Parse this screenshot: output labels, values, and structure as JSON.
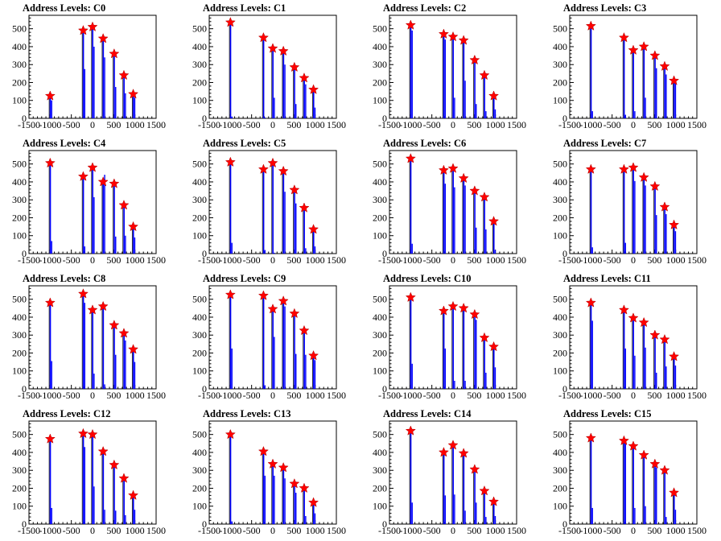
{
  "chart_data": [
    {
      "type": "bar",
      "title": "Address Levels: C0",
      "xlim": [
        -1500,
        1500
      ],
      "ylim": [
        0,
        500
      ],
      "yticks": [
        0,
        100,
        200,
        300,
        400,
        500
      ],
      "xticks": [
        -1500,
        -1000,
        -500,
        0,
        500,
        1000,
        1500
      ],
      "peaks": [
        {
          "x": -1000,
          "y": 125,
          "shoulder": 100
        },
        {
          "x": -220,
          "y": 490,
          "shoulder": 275
        },
        {
          "x": 0,
          "y": 510,
          "shoulder": 400
        },
        {
          "x": 250,
          "y": 445,
          "shoulder": 340
        },
        {
          "x": 510,
          "y": 360,
          "shoulder": 175
        },
        {
          "x": 740,
          "y": 240,
          "shoulder": 140
        },
        {
          "x": 960,
          "y": 135,
          "shoulder": 115
        }
      ]
    },
    {
      "type": "bar",
      "title": "Address Levels: C1",
      "xlim": [
        -1500,
        1500
      ],
      "ylim": [
        0,
        500
      ],
      "yticks": [
        0,
        100,
        200,
        300,
        400,
        500
      ],
      "xticks": [
        -1500,
        -1000,
        -500,
        0,
        500,
        1000,
        1500
      ],
      "peaks": [
        {
          "x": -1000,
          "y": 535,
          "shoulder": 10
        },
        {
          "x": -220,
          "y": 450,
          "shoulder": 5
        },
        {
          "x": 0,
          "y": 390,
          "shoulder": 115
        },
        {
          "x": 250,
          "y": 375,
          "shoulder": 300
        },
        {
          "x": 510,
          "y": 285,
          "shoulder": 80
        },
        {
          "x": 740,
          "y": 225,
          "shoulder": 190
        },
        {
          "x": 960,
          "y": 160,
          "shoulder": 60
        }
      ]
    },
    {
      "type": "bar",
      "title": "Address Levels: C2",
      "xlim": [
        -1500,
        1500
      ],
      "ylim": [
        0,
        500
      ],
      "yticks": [
        0,
        100,
        200,
        300,
        400,
        500
      ],
      "xticks": [
        -1500,
        -1000,
        -500,
        0,
        500,
        1000,
        1500
      ],
      "peaks": [
        {
          "x": -1000,
          "y": 520,
          "shoulder": 490
        },
        {
          "x": -220,
          "y": 470,
          "shoulder": 440
        },
        {
          "x": 0,
          "y": 455,
          "shoulder": 115
        },
        {
          "x": 250,
          "y": 435,
          "shoulder": 210
        },
        {
          "x": 510,
          "y": 325,
          "shoulder": 80
        },
        {
          "x": 740,
          "y": 240,
          "shoulder": 40
        },
        {
          "x": 960,
          "y": 125,
          "shoulder": 50
        }
      ]
    },
    {
      "type": "bar",
      "title": "Address Levels: C3",
      "xlim": [
        -1500,
        1500
      ],
      "ylim": [
        0,
        500
      ],
      "yticks": [
        0,
        100,
        200,
        300,
        400,
        500
      ],
      "xticks": [
        -1500,
        -1000,
        -500,
        0,
        500,
        1000,
        1500
      ],
      "peaks": [
        {
          "x": -1000,
          "y": 515,
          "shoulder": 40
        },
        {
          "x": -220,
          "y": 450,
          "shoulder": 20
        },
        {
          "x": 0,
          "y": 380,
          "shoulder": 40
        },
        {
          "x": 250,
          "y": 400,
          "shoulder": 115
        },
        {
          "x": 510,
          "y": 350,
          "shoulder": 280
        },
        {
          "x": 740,
          "y": 290,
          "shoulder": 245
        },
        {
          "x": 960,
          "y": 210,
          "shoulder": 200
        }
      ]
    },
    {
      "type": "bar",
      "title": "Address Levels: C4",
      "xlim": [
        -1500,
        1500
      ],
      "ylim": [
        0,
        500
      ],
      "yticks": [
        0,
        100,
        200,
        300,
        400,
        500
      ],
      "xticks": [
        -1500,
        -1000,
        -500,
        0,
        500,
        1000,
        1500
      ],
      "peaks": [
        {
          "x": -1000,
          "y": 505,
          "shoulder": 70
        },
        {
          "x": -220,
          "y": 430,
          "shoulder": 40
        },
        {
          "x": 0,
          "y": 480,
          "shoulder": 315
        },
        {
          "x": 250,
          "y": 400,
          "shoulder": 440
        },
        {
          "x": 510,
          "y": 390,
          "shoulder": 95
        },
        {
          "x": 740,
          "y": 270,
          "shoulder": 100
        },
        {
          "x": 960,
          "y": 150,
          "shoulder": 90
        }
      ]
    },
    {
      "type": "bar",
      "title": "Address Levels: C5",
      "xlim": [
        -1500,
        1500
      ],
      "ylim": [
        0,
        500
      ],
      "yticks": [
        0,
        100,
        200,
        300,
        400,
        500
      ],
      "xticks": [
        -1500,
        -1000,
        -500,
        0,
        500,
        1000,
        1500
      ],
      "peaks": [
        {
          "x": -1000,
          "y": 510,
          "shoulder": 60
        },
        {
          "x": -220,
          "y": 470,
          "shoulder": 20
        },
        {
          "x": 0,
          "y": 505,
          "shoulder": 5
        },
        {
          "x": 250,
          "y": 460,
          "shoulder": 345
        },
        {
          "x": 510,
          "y": 355,
          "shoulder": 280
        },
        {
          "x": 740,
          "y": 255,
          "shoulder": 30
        },
        {
          "x": 960,
          "y": 135,
          "shoulder": 40
        }
      ]
    },
    {
      "type": "bar",
      "title": "Address Levels: C6",
      "xlim": [
        -1500,
        1500
      ],
      "ylim": [
        0,
        500
      ],
      "yticks": [
        0,
        100,
        200,
        300,
        400,
        500
      ],
      "xticks": [
        -1500,
        -1000,
        -500,
        0,
        500,
        1000,
        1500
      ],
      "peaks": [
        {
          "x": -1000,
          "y": 530,
          "shoulder": 55
        },
        {
          "x": -220,
          "y": 465,
          "shoulder": 390
        },
        {
          "x": 0,
          "y": 475,
          "shoulder": 370
        },
        {
          "x": 250,
          "y": 420,
          "shoulder": 380
        },
        {
          "x": 510,
          "y": 350,
          "shoulder": 145
        },
        {
          "x": 740,
          "y": 315,
          "shoulder": 135
        },
        {
          "x": 960,
          "y": 180,
          "shoulder": 20
        }
      ]
    },
    {
      "type": "bar",
      "title": "Address Levels: C7",
      "xlim": [
        -1500,
        1500
      ],
      "ylim": [
        0,
        500
      ],
      "yticks": [
        0,
        100,
        200,
        300,
        400,
        500
      ],
      "xticks": [
        -1500,
        -1000,
        -500,
        0,
        500,
        1000,
        1500
      ],
      "peaks": [
        {
          "x": -1000,
          "y": 470,
          "shoulder": 35
        },
        {
          "x": -220,
          "y": 470,
          "shoulder": 60
        },
        {
          "x": 0,
          "y": 480,
          "shoulder": 405
        },
        {
          "x": 250,
          "y": 425,
          "shoulder": 380
        },
        {
          "x": 510,
          "y": 375,
          "shoulder": 215
        },
        {
          "x": 740,
          "y": 260,
          "shoulder": 220
        },
        {
          "x": 960,
          "y": 160,
          "shoulder": 125
        }
      ]
    },
    {
      "type": "bar",
      "title": "Address Levels: C8",
      "xlim": [
        -1500,
        1500
      ],
      "ylim": [
        0,
        500
      ],
      "yticks": [
        0,
        100,
        200,
        300,
        400,
        500
      ],
      "xticks": [
        -1500,
        -1000,
        -500,
        0,
        500,
        1000,
        1500
      ],
      "peaks": [
        {
          "x": -1000,
          "y": 480,
          "shoulder": 155
        },
        {
          "x": -220,
          "y": 530,
          "shoulder": 480
        },
        {
          "x": 0,
          "y": 440,
          "shoulder": 85
        },
        {
          "x": 250,
          "y": 460,
          "shoulder": 25
        },
        {
          "x": 510,
          "y": 355,
          "shoulder": 190
        },
        {
          "x": 740,
          "y": 310,
          "shoulder": 270
        },
        {
          "x": 960,
          "y": 220,
          "shoulder": 150
        }
      ]
    },
    {
      "type": "bar",
      "title": "Address Levels: C9",
      "xlim": [
        -1500,
        1500
      ],
      "ylim": [
        0,
        500
      ],
      "yticks": [
        0,
        100,
        200,
        300,
        400,
        500
      ],
      "xticks": [
        -1500,
        -1000,
        -500,
        0,
        500,
        1000,
        1500
      ],
      "peaks": [
        {
          "x": -1000,
          "y": 525,
          "shoulder": 225
        },
        {
          "x": -220,
          "y": 520,
          "shoulder": 20
        },
        {
          "x": 0,
          "y": 445,
          "shoulder": 290
        },
        {
          "x": 250,
          "y": 490,
          "shoulder": 460
        },
        {
          "x": 510,
          "y": 420,
          "shoulder": 195
        },
        {
          "x": 740,
          "y": 325,
          "shoulder": 190
        },
        {
          "x": 960,
          "y": 185,
          "shoulder": 160
        }
      ]
    },
    {
      "type": "bar",
      "title": "Address Levels: C10",
      "xlim": [
        -1500,
        1500
      ],
      "ylim": [
        0,
        500
      ],
      "yticks": [
        0,
        100,
        200,
        300,
        400,
        500
      ],
      "xticks": [
        -1500,
        -1000,
        -500,
        0,
        500,
        1000,
        1500
      ],
      "peaks": [
        {
          "x": -1000,
          "y": 510,
          "shoulder": 140
        },
        {
          "x": -220,
          "y": 435,
          "shoulder": 225
        },
        {
          "x": 0,
          "y": 460,
          "shoulder": 45
        },
        {
          "x": 250,
          "y": 450,
          "shoulder": 45
        },
        {
          "x": 510,
          "y": 415,
          "shoulder": 385
        },
        {
          "x": 740,
          "y": 285,
          "shoulder": 90
        },
        {
          "x": 960,
          "y": 235,
          "shoulder": 120
        }
      ]
    },
    {
      "type": "bar",
      "title": "Address Levels: C11",
      "xlim": [
        -1500,
        1500
      ],
      "ylim": [
        0,
        500
      ],
      "yticks": [
        0,
        100,
        200,
        300,
        400,
        500
      ],
      "xticks": [
        -1500,
        -1000,
        -500,
        0,
        500,
        1000,
        1500
      ],
      "peaks": [
        {
          "x": -1000,
          "y": 480,
          "shoulder": 380
        },
        {
          "x": -220,
          "y": 440,
          "shoulder": 225
        },
        {
          "x": 0,
          "y": 395,
          "shoulder": 185
        },
        {
          "x": 250,
          "y": 370,
          "shoulder": 230
        },
        {
          "x": 510,
          "y": 300,
          "shoulder": 90
        },
        {
          "x": 740,
          "y": 275,
          "shoulder": 125
        },
        {
          "x": 960,
          "y": 180,
          "shoulder": 130
        }
      ]
    },
    {
      "type": "bar",
      "title": "Address Levels: C12",
      "xlim": [
        -1500,
        1500
      ],
      "ylim": [
        0,
        500
      ],
      "yticks": [
        0,
        100,
        200,
        300,
        400,
        500
      ],
      "xticks": [
        -1500,
        -1000,
        -500,
        0,
        500,
        1000,
        1500
      ],
      "peaks": [
        {
          "x": -1000,
          "y": 475,
          "shoulder": 90
        },
        {
          "x": -220,
          "y": 505,
          "shoulder": 430
        },
        {
          "x": 0,
          "y": 500,
          "shoulder": 210
        },
        {
          "x": 250,
          "y": 405,
          "shoulder": 80
        },
        {
          "x": 510,
          "y": 330,
          "shoulder": 75
        },
        {
          "x": 740,
          "y": 255,
          "shoulder": 50
        },
        {
          "x": 960,
          "y": 160,
          "shoulder": 80
        }
      ]
    },
    {
      "type": "bar",
      "title": "Address Levels: C13",
      "xlim": [
        -1500,
        1500
      ],
      "ylim": [
        0,
        500
      ],
      "yticks": [
        0,
        100,
        200,
        300,
        400,
        500
      ],
      "xticks": [
        -1500,
        -1000,
        -500,
        0,
        500,
        1000,
        1500
      ],
      "peaks": [
        {
          "x": -1000,
          "y": 500,
          "shoulder": 15
        },
        {
          "x": -220,
          "y": 405,
          "shoulder": 270
        },
        {
          "x": 0,
          "y": 335,
          "shoulder": 270
        },
        {
          "x": 250,
          "y": 315,
          "shoulder": 255
        },
        {
          "x": 510,
          "y": 225,
          "shoulder": 175
        },
        {
          "x": 740,
          "y": 200,
          "shoulder": 45
        },
        {
          "x": 960,
          "y": 120,
          "shoulder": 60
        }
      ]
    },
    {
      "type": "bar",
      "title": "Address Levels: C14",
      "xlim": [
        -1500,
        1500
      ],
      "ylim": [
        0,
        500
      ],
      "yticks": [
        0,
        100,
        200,
        300,
        400,
        500
      ],
      "xticks": [
        -1500,
        -1000,
        -500,
        0,
        500,
        1000,
        1500
      ],
      "peaks": [
        {
          "x": -1000,
          "y": 520,
          "shoulder": 120
        },
        {
          "x": -220,
          "y": 400,
          "shoulder": 160
        },
        {
          "x": 0,
          "y": 440,
          "shoulder": 165
        },
        {
          "x": 250,
          "y": 395,
          "shoulder": 75
        },
        {
          "x": 510,
          "y": 305,
          "shoulder": 120
        },
        {
          "x": 740,
          "y": 185,
          "shoulder": 40
        },
        {
          "x": 960,
          "y": 125,
          "shoulder": 45
        }
      ]
    },
    {
      "type": "bar",
      "title": "Address Levels: C15",
      "xlim": [
        -1500,
        1500
      ],
      "ylim": [
        0,
        500
      ],
      "yticks": [
        0,
        100,
        200,
        300,
        400,
        500
      ],
      "xticks": [
        -1500,
        -1000,
        -500,
        0,
        500,
        1000,
        1500
      ],
      "peaks": [
        {
          "x": -1000,
          "y": 480,
          "shoulder": 90
        },
        {
          "x": -220,
          "y": 465,
          "shoulder": 455
        },
        {
          "x": 0,
          "y": 435,
          "shoulder": 90
        },
        {
          "x": 250,
          "y": 385,
          "shoulder": 100
        },
        {
          "x": 510,
          "y": 335,
          "shoulder": 315
        },
        {
          "x": 740,
          "y": 300,
          "shoulder": 40
        },
        {
          "x": 960,
          "y": 175,
          "shoulder": 80
        }
      ]
    }
  ],
  "colors": {
    "bar": "#0000ff",
    "line": "#000000",
    "marker": "#ff0000"
  },
  "marker_icon": "red-star-marker"
}
